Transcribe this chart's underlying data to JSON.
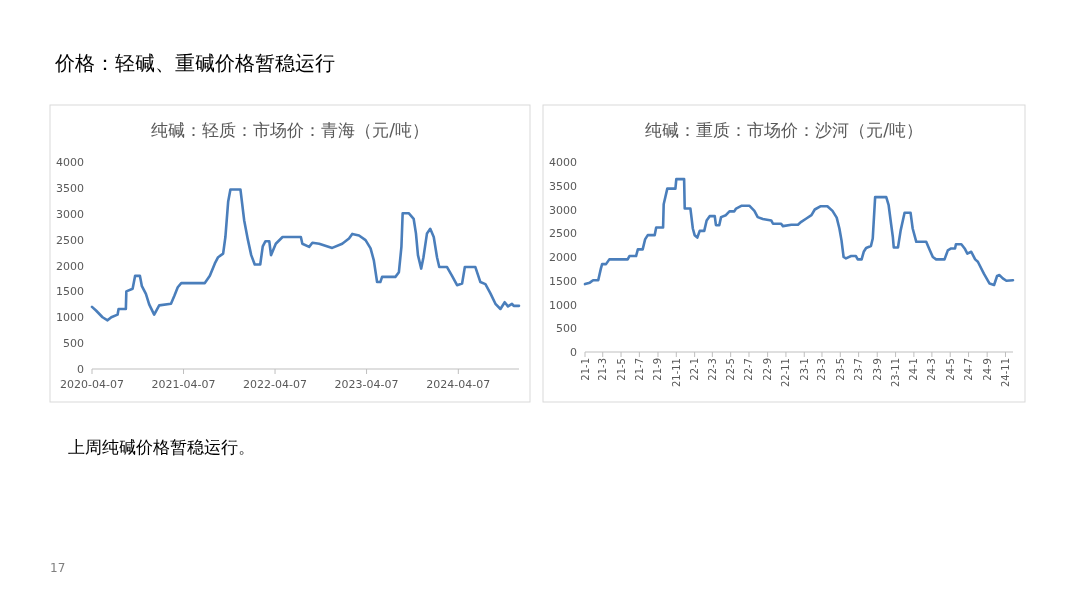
{
  "chart_data": [
    {
      "type": "line",
      "title": "纯碱：轻质：市场价：青海（元/吨）",
      "annotations": [
        "价格：轻碱、重碱价格暂稳运行",
        "上周纯碱价格暂稳运行。",
        "17"
      ],
      "x": [
        "2020-04-07",
        "2020-04-23",
        "2020-05-19",
        "2020-06-08",
        "2020-06-23",
        "2020-07-18",
        "2020-07-22",
        "2020-08-20",
        "2020-08-22",
        "2020-09-16",
        "2020-09-26",
        "2020-10-15",
        "2020-10-23",
        "2020-11-08",
        "2020-11-21",
        "2020-12-11",
        "2020-12-31",
        "2021-02-16",
        "2021-03-02",
        "2021-03-15",
        "2021-03-29",
        "2021-07-01",
        "2021-07-21",
        "2021-08-10",
        "2021-08-23",
        "2021-09-12",
        "2021-09-21",
        "2021-10-02",
        "2021-10-11",
        "2021-11-20",
        "2021-12-05",
        "2021-12-20",
        "2022-01-02",
        "2022-01-16",
        "2022-02-07",
        "2022-02-17",
        "2022-02-28",
        "2022-03-15",
        "2022-03-22",
        "2022-04-10",
        "2022-05-07",
        "2022-07-19",
        "2022-07-25",
        "2022-08-21",
        "2022-09-03",
        "2022-09-30",
        "2022-11-21",
        "2022-12-31",
        "2023-01-27",
        "2023-02-09",
        "2023-03-08",
        "2023-04-03",
        "2023-04-23",
        "2023-05-06",
        "2023-05-19",
        "2023-06-01",
        "2023-06-08",
        "2023-07-31",
        "2023-08-14",
        "2023-08-24",
        "2023-08-29",
        "2023-09-22",
        "2023-10-12",
        "2023-10-21",
        "2023-10-29",
        "2023-11-11",
        "2023-11-20",
        "2023-12-04",
        "2023-12-17",
        "2023-12-31",
        "2024-01-13",
        "2024-01-22",
        "2024-02-22",
        "2024-03-13",
        "2024-04-02",
        "2024-04-22",
        "2024-05-03",
        "2024-06-14",
        "2024-07-04",
        "2024-07-24",
        "2024-08-13",
        "2024-09-02",
        "2024-09-22",
        "2024-10-09",
        "2024-10-22",
        "2024-11-07",
        "2024-11-14",
        "2024-12-05"
      ],
      "series": [
        {
          "color": "#4a7ebb",
          "values": [
            1200,
            1130,
            1000,
            940,
            1000,
            1050,
            1160,
            1160,
            1500,
            1550,
            1800,
            1800,
            1600,
            1450,
            1250,
            1050,
            1230,
            1260,
            1420,
            1580,
            1660,
            1660,
            1800,
            2040,
            2160,
            2230,
            2550,
            3230,
            3470,
            3470,
            2870,
            2490,
            2200,
            2020,
            2020,
            2370,
            2470,
            2470,
            2200,
            2420,
            2550,
            2550,
            2420,
            2360,
            2440,
            2420,
            2340,
            2420,
            2520,
            2610,
            2580,
            2490,
            2330,
            2100,
            1680,
            1680,
            1780,
            1780,
            1870,
            2360,
            3010,
            3010,
            2900,
            2620,
            2200,
            1940,
            2160,
            2620,
            2710,
            2550,
            2160,
            1970,
            1970,
            1800,
            1620,
            1650,
            1970,
            1970,
            1680,
            1640,
            1460,
            1260,
            1160,
            1290,
            1210,
            1260,
            1220,
            1220
          ]
        }
      ],
      "xlim": [
        "2020-04-07",
        "2024-12-05"
      ],
      "xticks": [
        "2020-04-07",
        "2021-04-07",
        "2022-04-07",
        "2023-04-07",
        "2024-04-07"
      ],
      "ylim": [
        0,
        4000
      ],
      "yticks": [
        0,
        500,
        1000,
        1500,
        2000,
        2500,
        3000,
        3500,
        4000
      ]
    },
    {
      "type": "line",
      "title": "纯碱：重质：市场价：沙河（元/吨）",
      "x": [
        "2021-01-01",
        "2021-01-17",
        "2021-01-28",
        "2021-02-14",
        "2021-02-23",
        "2021-02-27",
        "2021-03-12",
        "2021-03-23",
        "2021-05-23",
        "2021-05-29",
        "2021-06-20",
        "2021-06-26",
        "2021-07-12",
        "2021-07-20",
        "2021-07-29",
        "2021-08-21",
        "2021-08-26",
        "2021-09-18",
        "2021-09-20",
        "2021-10-02",
        "2021-10-29",
        "2021-11-01",
        "2021-11-27",
        "2021-11-29",
        "2021-12-18",
        "2021-12-26",
        "2022-01-01",
        "2022-01-10",
        "2022-01-18",
        "2022-02-02",
        "2022-02-10",
        "2022-02-20",
        "2022-03-09",
        "2022-03-13",
        "2022-03-24",
        "2022-03-30",
        "2022-04-15",
        "2022-04-27",
        "2022-05-13",
        "2022-05-19",
        "2022-06-07",
        "2022-07-02",
        "2022-07-19",
        "2022-07-30",
        "2022-08-16",
        "2022-09-13",
        "2022-09-19",
        "2022-10-16",
        "2022-10-22",
        "2022-11-19",
        "2022-12-11",
        "2022-12-22",
        "2023-01-08",
        "2023-01-25",
        "2023-02-05",
        "2023-02-25",
        "2023-03-19",
        "2023-04-05",
        "2023-04-19",
        "2023-04-28",
        "2023-05-05",
        "2023-05-12",
        "2023-05-20",
        "2023-06-06",
        "2023-06-22",
        "2023-06-28",
        "2023-07-11",
        "2023-07-18",
        "2023-07-26",
        "2023-08-11",
        "2023-08-17",
        "2023-08-25",
        "2023-10-01",
        "2023-10-09",
        "2023-10-17",
        "2023-10-23",
        "2023-10-26",
        "2023-11-09",
        "2023-11-18",
        "2023-12-01",
        "2023-12-21",
        "2023-12-28",
        "2024-01-09",
        "2024-02-11",
        "2024-02-22",
        "2024-03-04",
        "2024-03-15",
        "2024-04-12",
        "2024-04-23",
        "2024-05-04",
        "2024-05-17",
        "2024-05-20",
        "2024-06-07",
        "2024-06-18",
        "2024-06-27",
        "2024-07-10",
        "2024-07-23",
        "2024-08-01",
        "2024-08-21",
        "2024-09-09",
        "2024-09-24",
        "2024-10-04",
        "2024-10-12",
        "2024-10-23",
        "2024-11-04",
        "2024-11-26"
      ],
      "series": [
        {
          "color": "#4a7ebb",
          "values": [
            1430,
            1460,
            1510,
            1510,
            1760,
            1850,
            1850,
            1950,
            1950,
            2020,
            2020,
            2160,
            2160,
            2370,
            2460,
            2460,
            2620,
            2620,
            3110,
            3440,
            3440,
            3640,
            3640,
            3020,
            3020,
            2600,
            2460,
            2410,
            2550,
            2550,
            2770,
            2860,
            2860,
            2670,
            2670,
            2840,
            2880,
            2960,
            2960,
            3020,
            3080,
            3080,
            2970,
            2840,
            2800,
            2770,
            2700,
            2700,
            2650,
            2680,
            2680,
            2740,
            2810,
            2880,
            3000,
            3070,
            3070,
            2970,
            2830,
            2600,
            2350,
            2000,
            1970,
            2020,
            2020,
            1950,
            1950,
            2110,
            2190,
            2230,
            2390,
            3260,
            3260,
            3090,
            2700,
            2420,
            2200,
            2200,
            2560,
            2930,
            2930,
            2600,
            2320,
            2320,
            2160,
            2000,
            1950,
            1950,
            2140,
            2180,
            2180,
            2270,
            2270,
            2180,
            2070,
            2110,
            1950,
            1900,
            1650,
            1440,
            1410,
            1600,
            1620,
            1550,
            1500,
            1510
          ]
        }
      ],
      "xlim": [
        "2021-01-01",
        "2024-11-26"
      ],
      "xticks": [
        {
          "value": "2021-01-01",
          "label": "21-1"
        },
        {
          "value": "2021-03-01",
          "label": "21-3"
        },
        {
          "value": "2021-05-01",
          "label": "21-5"
        },
        {
          "value": "2021-07-01",
          "label": "21-7"
        },
        {
          "value": "2021-09-01",
          "label": "21-9"
        },
        {
          "value": "2021-11-01",
          "label": "21-11"
        },
        {
          "value": "2022-01-01",
          "label": "22-1"
        },
        {
          "value": "2022-03-01",
          "label": "22-3"
        },
        {
          "value": "2022-05-01",
          "label": "22-5"
        },
        {
          "value": "2022-07-01",
          "label": "22-7"
        },
        {
          "value": "2022-09-01",
          "label": "22-9"
        },
        {
          "value": "2022-11-01",
          "label": "22-11"
        },
        {
          "value": "2023-01-01",
          "label": "23-1"
        },
        {
          "value": "2023-03-01",
          "label": "23-3"
        },
        {
          "value": "2023-05-01",
          "label": "23-5"
        },
        {
          "value": "2023-07-01",
          "label": "23-7"
        },
        {
          "value": "2023-09-01",
          "label": "23-9"
        },
        {
          "value": "2023-11-01",
          "label": "23-11"
        },
        {
          "value": "2024-01-01",
          "label": "24-1"
        },
        {
          "value": "2024-03-01",
          "label": "24-3"
        },
        {
          "value": "2024-05-01",
          "label": "24-5"
        },
        {
          "value": "2024-07-01",
          "label": "24-7"
        },
        {
          "value": "2024-09-01",
          "label": "24-9"
        },
        {
          "value": "2024-11-01",
          "label": "24-11"
        }
      ],
      "ylim": [
        0,
        4000
      ],
      "yticks": [
        0,
        500,
        1000,
        1500,
        2000,
        2500,
        3000,
        3500,
        4000
      ]
    }
  ]
}
